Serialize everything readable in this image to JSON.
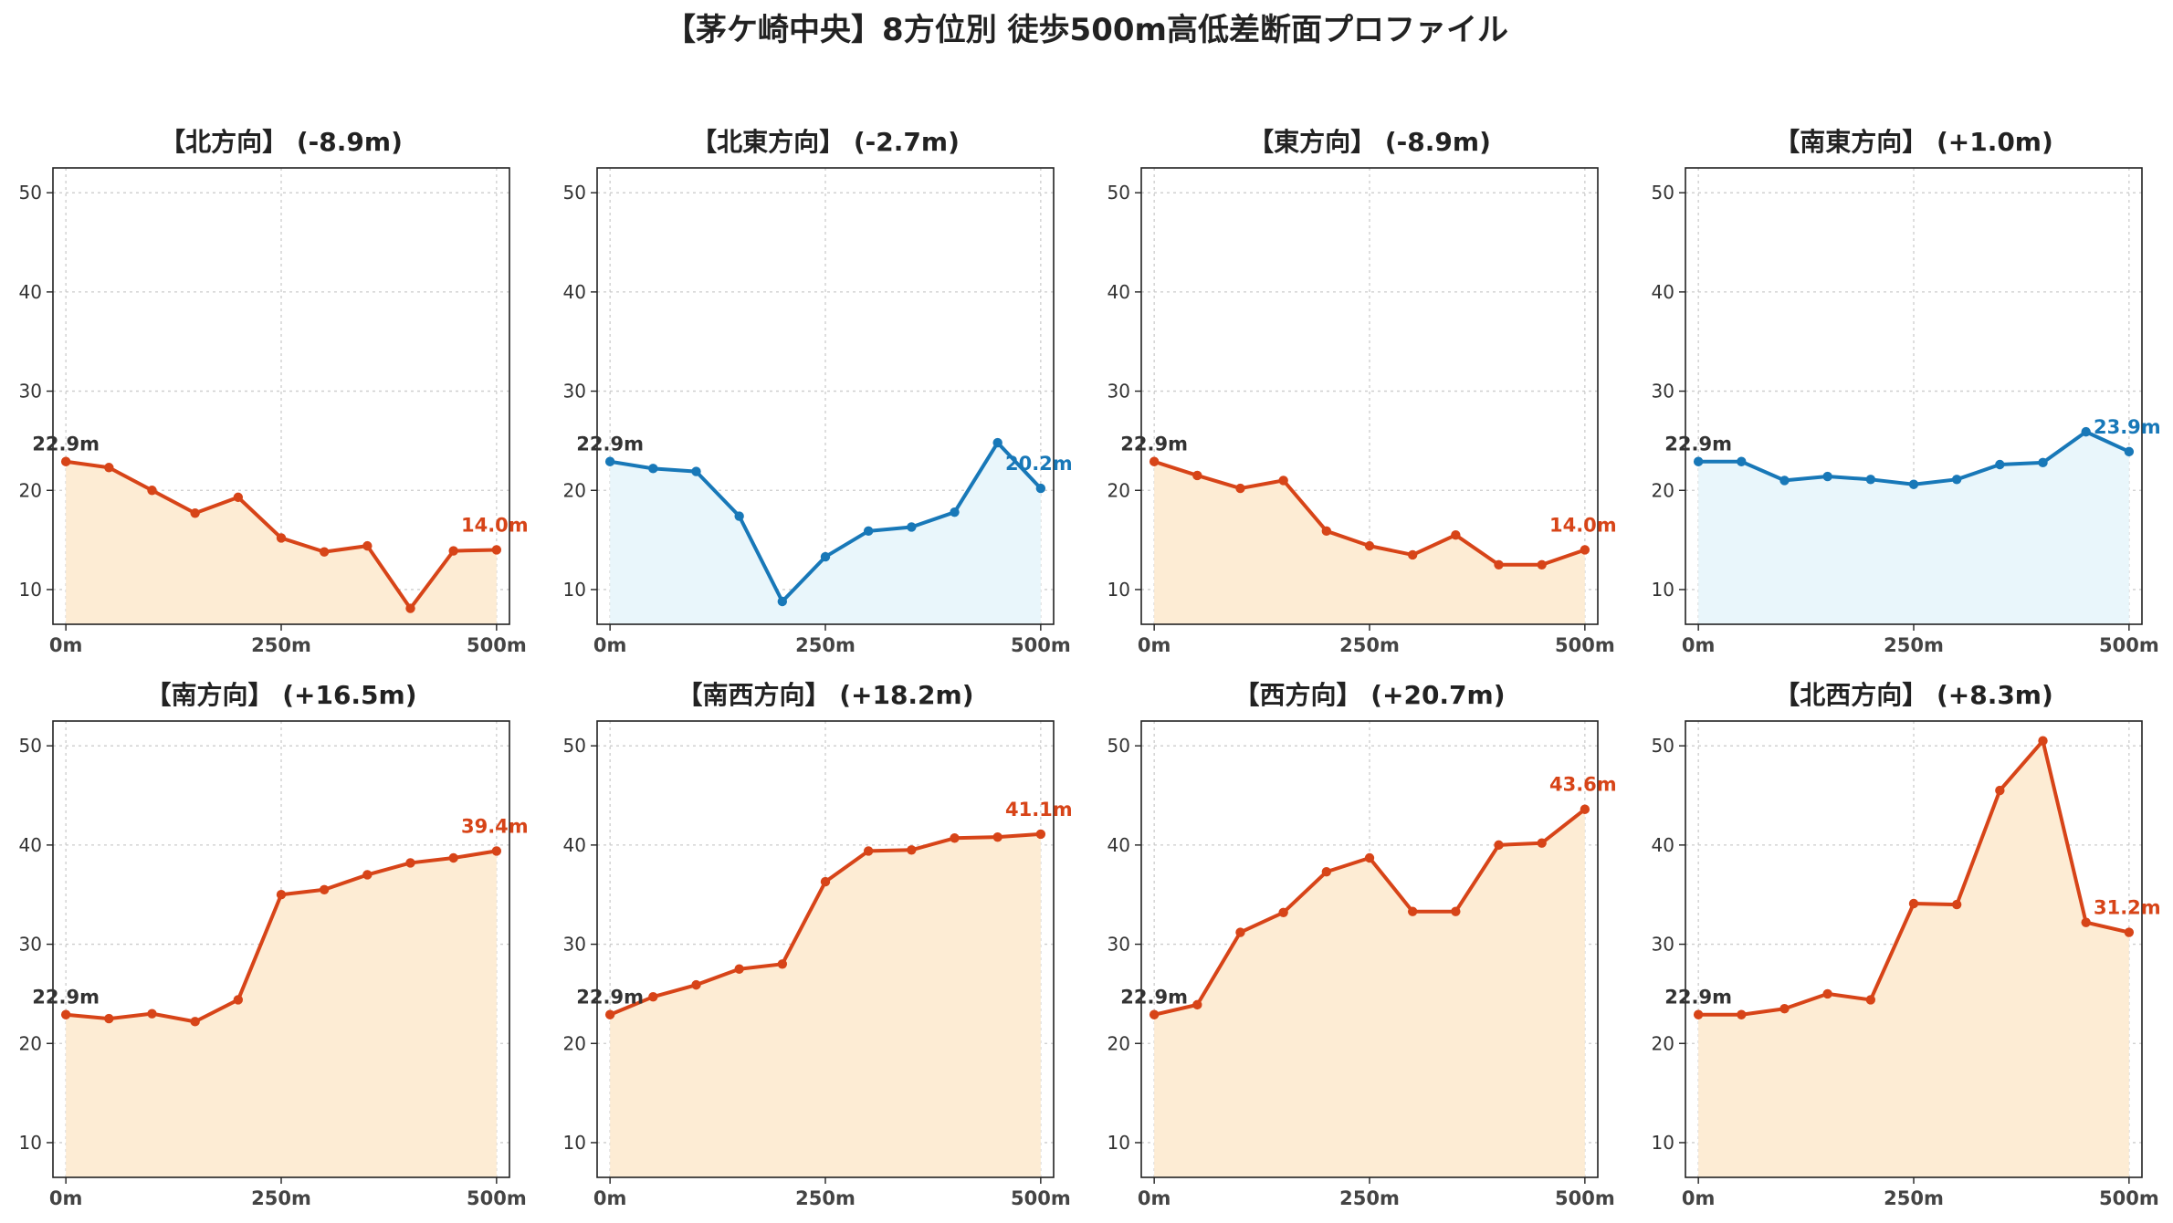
{
  "title": "【茅ケ崎中央】8方位別 徒歩500m高低差断面プロファイル",
  "colors": {
    "down_line": "#1878b8",
    "down_fill": "#e9f6fb",
    "up_line": "#d74418",
    "up_fill": "#fdecd4",
    "start_label": "#333333"
  },
  "chart_data": [
    {
      "type": "area",
      "title": "【北方向】 (-8.9m)",
      "trend": "up",
      "x": [
        0,
        50,
        100,
        150,
        200,
        250,
        300,
        350,
        400,
        450,
        500
      ],
      "values": [
        22.9,
        22.3,
        20.0,
        17.7,
        19.3,
        15.2,
        13.8,
        14.4,
        8.1,
        13.9,
        14.0
      ],
      "start_label": "22.9m",
      "end_label": "14.0m",
      "xticks": [
        "0m",
        "250m",
        "500m"
      ],
      "yticks": [
        10,
        20,
        30,
        40,
        50
      ],
      "xlim": [
        -15,
        515
      ],
      "ylim": [
        6.5,
        52.5
      ],
      "grid": true
    },
    {
      "type": "area",
      "title": "【北東方向】 (-2.7m)",
      "trend": "down",
      "x": [
        0,
        50,
        100,
        150,
        200,
        250,
        300,
        350,
        400,
        450,
        500
      ],
      "values": [
        22.9,
        22.2,
        21.9,
        17.4,
        8.8,
        13.3,
        15.9,
        16.3,
        17.8,
        24.8,
        20.2
      ],
      "start_label": "22.9m",
      "end_label": "20.2m",
      "xticks": [
        "0m",
        "250m",
        "500m"
      ],
      "yticks": [
        10,
        20,
        30,
        40,
        50
      ],
      "xlim": [
        -15,
        515
      ],
      "ylim": [
        6.5,
        52.5
      ],
      "grid": true
    },
    {
      "type": "area",
      "title": "【東方向】 (-8.9m)",
      "trend": "up",
      "x": [
        0,
        50,
        100,
        150,
        200,
        250,
        300,
        350,
        400,
        450,
        500
      ],
      "values": [
        22.9,
        21.5,
        20.2,
        21.0,
        15.9,
        14.4,
        13.5,
        15.5,
        12.5,
        12.5,
        14.0
      ],
      "start_label": "22.9m",
      "end_label": "14.0m",
      "xticks": [
        "0m",
        "250m",
        "500m"
      ],
      "yticks": [
        10,
        20,
        30,
        40,
        50
      ],
      "xlim": [
        -15,
        515
      ],
      "ylim": [
        6.5,
        52.5
      ],
      "grid": true
    },
    {
      "type": "area",
      "title": "【南東方向】 (+1.0m)",
      "trend": "down",
      "x": [
        0,
        50,
        100,
        150,
        200,
        250,
        300,
        350,
        400,
        450,
        500
      ],
      "values": [
        22.9,
        22.9,
        21.0,
        21.4,
        21.1,
        20.6,
        21.1,
        22.6,
        22.8,
        25.9,
        23.9
      ],
      "start_label": "22.9m",
      "end_label": "23.9m",
      "xticks": [
        "0m",
        "250m",
        "500m"
      ],
      "yticks": [
        10,
        20,
        30,
        40,
        50
      ],
      "xlim": [
        -15,
        515
      ],
      "ylim": [
        6.5,
        52.5
      ],
      "grid": true
    },
    {
      "type": "area",
      "title": "【南方向】 (+16.5m)",
      "trend": "up",
      "x": [
        0,
        50,
        100,
        150,
        200,
        250,
        300,
        350,
        400,
        450,
        500
      ],
      "values": [
        22.9,
        22.5,
        23.0,
        22.2,
        24.4,
        35.0,
        35.5,
        37.0,
        38.2,
        38.7,
        39.4
      ],
      "start_label": "22.9m",
      "end_label": "39.4m",
      "xticks": [
        "0m",
        "250m",
        "500m"
      ],
      "yticks": [
        10,
        20,
        30,
        40,
        50
      ],
      "xlim": [
        -15,
        515
      ],
      "ylim": [
        6.5,
        52.5
      ],
      "grid": true
    },
    {
      "type": "area",
      "title": "【南西方向】 (+18.2m)",
      "trend": "up",
      "x": [
        0,
        50,
        100,
        150,
        200,
        250,
        300,
        350,
        400,
        450,
        500
      ],
      "values": [
        22.9,
        24.7,
        25.9,
        27.5,
        28.0,
        36.3,
        39.4,
        39.5,
        40.7,
        40.8,
        41.1
      ],
      "start_label": "22.9m",
      "end_label": "41.1m",
      "xticks": [
        "0m",
        "250m",
        "500m"
      ],
      "yticks": [
        10,
        20,
        30,
        40,
        50
      ],
      "xlim": [
        -15,
        515
      ],
      "ylim": [
        6.5,
        52.5
      ],
      "grid": true
    },
    {
      "type": "area",
      "title": "【西方向】 (+20.7m)",
      "trend": "up",
      "x": [
        0,
        50,
        100,
        150,
        200,
        250,
        300,
        350,
        400,
        450,
        500
      ],
      "values": [
        22.9,
        23.9,
        31.2,
        33.2,
        37.3,
        38.7,
        33.3,
        33.3,
        40.0,
        40.2,
        43.6
      ],
      "start_label": "22.9m",
      "end_label": "43.6m",
      "xticks": [
        "0m",
        "250m",
        "500m"
      ],
      "yticks": [
        10,
        20,
        30,
        40,
        50
      ],
      "xlim": [
        -15,
        515
      ],
      "ylim": [
        6.5,
        52.5
      ],
      "grid": true
    },
    {
      "type": "area",
      "title": "【北西方向】 (+8.3m)",
      "trend": "up",
      "x": [
        0,
        50,
        100,
        150,
        200,
        250,
        300,
        350,
        400,
        450,
        500
      ],
      "values": [
        22.9,
        22.9,
        23.5,
        25.0,
        24.4,
        34.1,
        34.0,
        45.5,
        50.5,
        32.2,
        31.2
      ],
      "start_label": "22.9m",
      "end_label": "31.2m",
      "xticks": [
        "0m",
        "250m",
        "500m"
      ],
      "yticks": [
        10,
        20,
        30,
        40,
        50
      ],
      "xlim": [
        -15,
        515
      ],
      "ylim": [
        6.5,
        52.5
      ],
      "grid": true
    }
  ]
}
